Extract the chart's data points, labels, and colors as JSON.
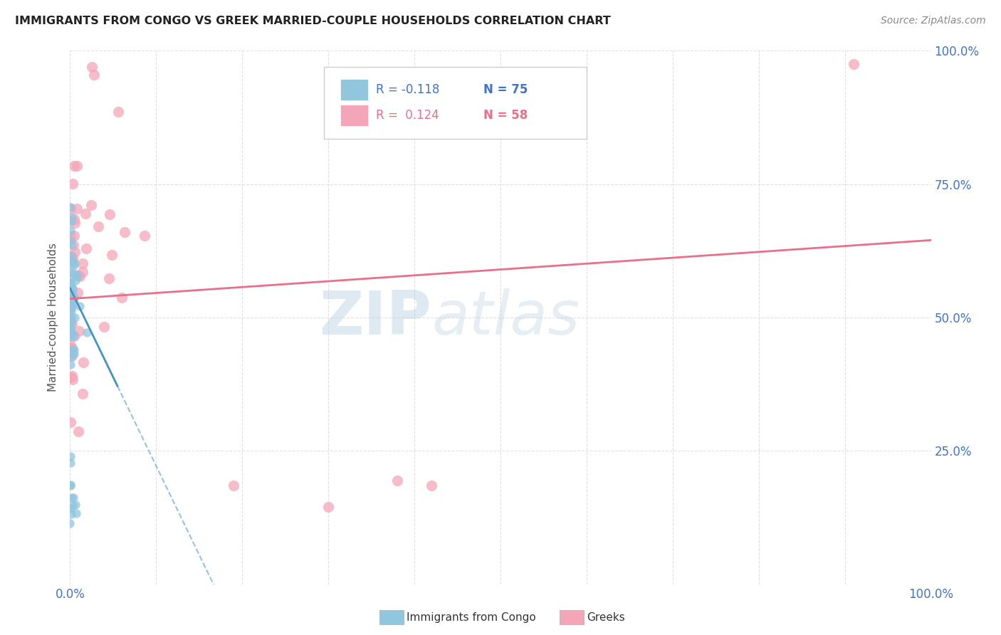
{
  "title": "IMMIGRANTS FROM CONGO VS GREEK MARRIED-COUPLE HOUSEHOLDS CORRELATION CHART",
  "source": "Source: ZipAtlas.com",
  "ylabel": "Married-couple Households",
  "xmin": 0.0,
  "xmax": 1.0,
  "ymin": 0.0,
  "ymax": 1.0,
  "congo_color": "#92c5de",
  "greek_color": "#f4a6b8",
  "congo_line_color": "#4393c3",
  "greek_line_color": "#e8708a",
  "watermark_color": "#c8dff0",
  "background_color": "#ffffff",
  "grid_color": "#e0e0e0",
  "axis_label_color": "#4472c4",
  "title_color": "#222222",
  "source_color": "#888888",
  "legend_r1": "R = -0.118",
  "legend_n1": "N = 75",
  "legend_r2": "R =  0.124",
  "legend_n2": "N = 58",
  "congo_trend_x0": 0.0,
  "congo_trend_y0": 0.555,
  "congo_trend_x1": 0.045,
  "congo_trend_y1": 0.405,
  "greek_trend_x0": 0.0,
  "greek_trend_y0": 0.535,
  "greek_trend_x1": 1.0,
  "greek_trend_y1": 0.645
}
